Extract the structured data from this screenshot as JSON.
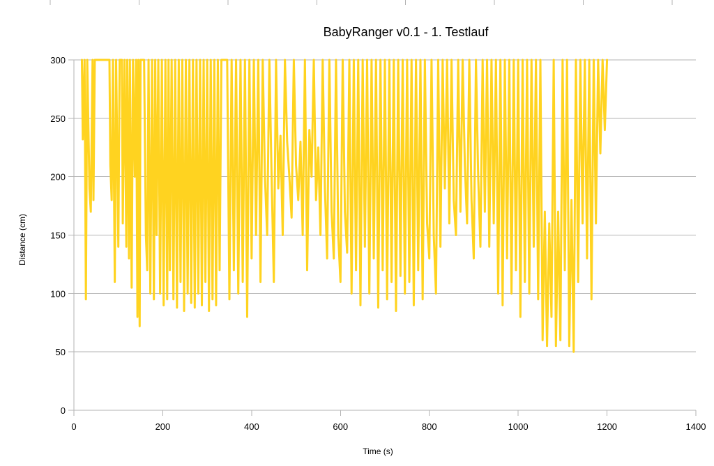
{
  "chart_data": {
    "type": "line",
    "title": "BabyRanger v0.1 - 1. Testlauf",
    "xlabel": "Time (s)",
    "ylabel": "Distance (cm)",
    "xlim": [
      0,
      1400
    ],
    "ylim": [
      0,
      300
    ],
    "x_ticks": [
      "0",
      "200",
      "400",
      "600",
      "800",
      "1000",
      "1200",
      "1400"
    ],
    "y_ticks": [
      "0",
      "50",
      "100",
      "150",
      "200",
      "250",
      "300"
    ],
    "grid": true,
    "legend": "none",
    "series_color": "#ffd320",
    "series": [
      {
        "points": [
          [
            18,
            300
          ],
          [
            20,
            232
          ],
          [
            24,
            300
          ],
          [
            27,
            95
          ],
          [
            30,
            300
          ],
          [
            35,
            190
          ],
          [
            38,
            170
          ],
          [
            42,
            300
          ],
          [
            44,
            180
          ],
          [
            47,
            300
          ],
          [
            80,
            300
          ],
          [
            82,
            210
          ],
          [
            85,
            180
          ],
          [
            88,
            300
          ],
          [
            92,
            110
          ],
          [
            95,
            300
          ],
          [
            100,
            140
          ],
          [
            103,
            300
          ],
          [
            108,
            300
          ],
          [
            110,
            160
          ],
          [
            114,
            300
          ],
          [
            118,
            140
          ],
          [
            120,
            300
          ],
          [
            124,
            130
          ],
          [
            126,
            300
          ],
          [
            130,
            105
          ],
          [
            133,
            300
          ],
          [
            137,
            200
          ],
          [
            140,
            300
          ],
          [
            143,
            80
          ],
          [
            145,
            300
          ],
          [
            148,
            72
          ],
          [
            150,
            300
          ],
          [
            158,
            300
          ],
          [
            162,
            150
          ],
          [
            165,
            120
          ],
          [
            168,
            300
          ],
          [
            172,
            100
          ],
          [
            176,
            300
          ],
          [
            180,
            95
          ],
          [
            183,
            300
          ],
          [
            186,
            150
          ],
          [
            190,
            300
          ],
          [
            194,
            100
          ],
          [
            198,
            300
          ],
          [
            202,
            90
          ],
          [
            206,
            300
          ],
          [
            210,
            95
          ],
          [
            213,
            300
          ],
          [
            216,
            120
          ],
          [
            220,
            300
          ],
          [
            224,
            95
          ],
          [
            228,
            300
          ],
          [
            232,
            88
          ],
          [
            236,
            300
          ],
          [
            240,
            110
          ],
          [
            244,
            300
          ],
          [
            248,
            85
          ],
          [
            252,
            300
          ],
          [
            256,
            100
          ],
          [
            260,
            300
          ],
          [
            264,
            92
          ],
          [
            268,
            300
          ],
          [
            272,
            88
          ],
          [
            276,
            300
          ],
          [
            280,
            100
          ],
          [
            284,
            300
          ],
          [
            288,
            90
          ],
          [
            292,
            300
          ],
          [
            296,
            110
          ],
          [
            300,
            300
          ],
          [
            304,
            85
          ],
          [
            308,
            300
          ],
          [
            312,
            95
          ],
          [
            316,
            300
          ],
          [
            320,
            90
          ],
          [
            324,
            300
          ],
          [
            328,
            120
          ],
          [
            332,
            300
          ],
          [
            345,
            300
          ],
          [
            350,
            95
          ],
          [
            355,
            300
          ],
          [
            360,
            120
          ],
          [
            365,
            300
          ],
          [
            370,
            100
          ],
          [
            375,
            300
          ],
          [
            380,
            110
          ],
          [
            385,
            300
          ],
          [
            390,
            80
          ],
          [
            395,
            300
          ],
          [
            400,
            130
          ],
          [
            405,
            300
          ],
          [
            410,
            150
          ],
          [
            415,
            300
          ],
          [
            420,
            110
          ],
          [
            425,
            300
          ],
          [
            430,
            200
          ],
          [
            435,
            150
          ],
          [
            440,
            300
          ],
          [
            445,
            200
          ],
          [
            450,
            110
          ],
          [
            455,
            300
          ],
          [
            460,
            190
          ],
          [
            465,
            235
          ],
          [
            470,
            150
          ],
          [
            475,
            300
          ],
          [
            480,
            230
          ],
          [
            485,
            200
          ],
          [
            490,
            165
          ],
          [
            495,
            300
          ],
          [
            500,
            210
          ],
          [
            505,
            180
          ],
          [
            510,
            230
          ],
          [
            515,
            150
          ],
          [
            520,
            300
          ],
          [
            525,
            120
          ],
          [
            530,
            240
          ],
          [
            535,
            200
          ],
          [
            540,
            300
          ],
          [
            545,
            180
          ],
          [
            550,
            225
          ],
          [
            555,
            150
          ],
          [
            560,
            300
          ],
          [
            565,
            190
          ],
          [
            570,
            130
          ],
          [
            575,
            300
          ],
          [
            580,
            170
          ],
          [
            585,
            130
          ],
          [
            590,
            300
          ],
          [
            595,
            150
          ],
          [
            600,
            110
          ],
          [
            605,
            300
          ],
          [
            610,
            170
          ],
          [
            615,
            135
          ],
          [
            620,
            300
          ],
          [
            625,
            100
          ],
          [
            630,
            300
          ],
          [
            635,
            120
          ],
          [
            640,
            300
          ],
          [
            645,
            90
          ],
          [
            650,
            300
          ],
          [
            655,
            140
          ],
          [
            660,
            300
          ],
          [
            665,
            100
          ],
          [
            670,
            300
          ],
          [
            675,
            130
          ],
          [
            680,
            300
          ],
          [
            685,
            88
          ],
          [
            690,
            300
          ],
          [
            695,
            120
          ],
          [
            700,
            300
          ],
          [
            705,
            95
          ],
          [
            710,
            300
          ],
          [
            715,
            110
          ],
          [
            720,
            300
          ],
          [
            725,
            85
          ],
          [
            730,
            300
          ],
          [
            735,
            115
          ],
          [
            740,
            300
          ],
          [
            745,
            100
          ],
          [
            750,
            300
          ],
          [
            755,
            110
          ],
          [
            760,
            300
          ],
          [
            765,
            90
          ],
          [
            770,
            300
          ],
          [
            775,
            120
          ],
          [
            780,
            300
          ],
          [
            785,
            95
          ],
          [
            790,
            300
          ],
          [
            795,
            160
          ],
          [
            800,
            130
          ],
          [
            805,
            300
          ],
          [
            810,
            150
          ],
          [
            815,
            100
          ],
          [
            820,
            300
          ],
          [
            825,
            140
          ],
          [
            830,
            300
          ],
          [
            835,
            190
          ],
          [
            840,
            300
          ],
          [
            845,
            160
          ],
          [
            850,
            300
          ],
          [
            855,
            180
          ],
          [
            860,
            150
          ],
          [
            865,
            300
          ],
          [
            870,
            170
          ],
          [
            875,
            300
          ],
          [
            880,
            210
          ],
          [
            885,
            160
          ],
          [
            890,
            300
          ],
          [
            895,
            180
          ],
          [
            900,
            130
          ],
          [
            905,
            300
          ],
          [
            910,
            200
          ],
          [
            915,
            140
          ],
          [
            920,
            300
          ],
          [
            925,
            170
          ],
          [
            930,
            300
          ],
          [
            935,
            140
          ],
          [
            940,
            300
          ],
          [
            945,
            160
          ],
          [
            950,
            300
          ],
          [
            955,
            100
          ],
          [
            960,
            300
          ],
          [
            965,
            90
          ],
          [
            970,
            300
          ],
          [
            975,
            130
          ],
          [
            980,
            300
          ],
          [
            985,
            100
          ],
          [
            990,
            300
          ],
          [
            995,
            120
          ],
          [
            1000,
            300
          ],
          [
            1005,
            80
          ],
          [
            1010,
            300
          ],
          [
            1015,
            110
          ],
          [
            1020,
            300
          ],
          [
            1025,
            100
          ],
          [
            1030,
            300
          ],
          [
            1035,
            140
          ],
          [
            1040,
            300
          ],
          [
            1045,
            95
          ],
          [
            1050,
            300
          ],
          [
            1055,
            60
          ],
          [
            1060,
            170
          ],
          [
            1065,
            55
          ],
          [
            1070,
            160
          ],
          [
            1075,
            80
          ],
          [
            1080,
            300
          ],
          [
            1085,
            55
          ],
          [
            1090,
            170
          ],
          [
            1095,
            60
          ],
          [
            1100,
            300
          ],
          [
            1105,
            120
          ],
          [
            1110,
            300
          ],
          [
            1115,
            55
          ],
          [
            1120,
            180
          ],
          [
            1125,
            50
          ],
          [
            1130,
            300
          ],
          [
            1135,
            110
          ],
          [
            1140,
            300
          ],
          [
            1145,
            160
          ],
          [
            1150,
            300
          ],
          [
            1155,
            130
          ],
          [
            1160,
            300
          ],
          [
            1165,
            95
          ],
          [
            1170,
            300
          ],
          [
            1175,
            160
          ],
          [
            1180,
            300
          ],
          [
            1185,
            220
          ],
          [
            1190,
            300
          ],
          [
            1195,
            240
          ],
          [
            1200,
            300
          ]
        ]
      }
    ]
  }
}
